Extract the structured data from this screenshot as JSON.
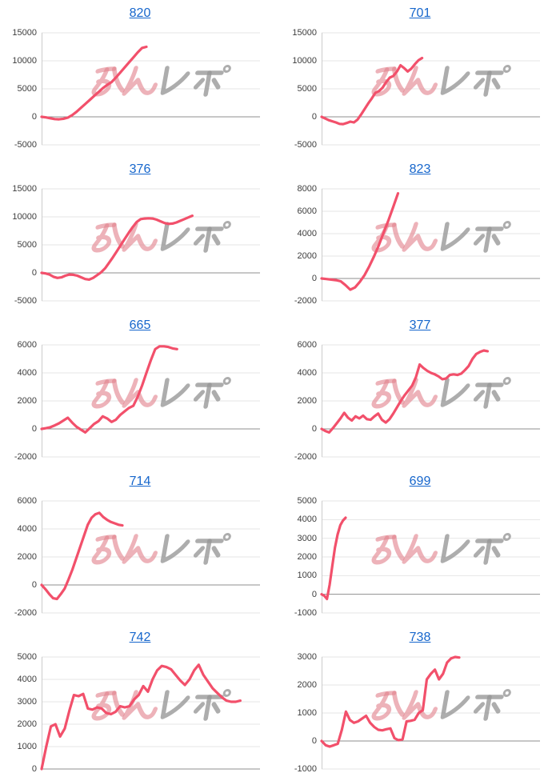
{
  "page": {
    "background": "#ffffff"
  },
  "style": {
    "accent_link": "#1666cc",
    "line_color": "#f2506b",
    "grid_color": "#e6e6e6",
    "zero_line_color": "#8f8f8f",
    "axis_color": "#cccccc",
    "label_color": "#3d3d3d"
  },
  "watermark": {
    "text": "みんレポ",
    "pink_color": "rgba(226,130,142,0.62)",
    "gray_color": "rgba(150,150,150,0.78)"
  },
  "chart_data": [
    {
      "type": "line",
      "title": "820",
      "legend": "none",
      "grid": "on",
      "yticks": [
        15000,
        10000,
        5000,
        0,
        -5000
      ],
      "ylim": [
        -5000,
        15000
      ],
      "x_extent": 0.48,
      "values": [
        0,
        -100,
        -250,
        -400,
        -450,
        -350,
        -150,
        300,
        900,
        1600,
        2300,
        3000,
        3700,
        4400,
        5100,
        5700,
        6200,
        7000,
        7900,
        8800,
        9700,
        10600,
        11500,
        12300,
        12500
      ]
    },
    {
      "type": "line",
      "title": "701",
      "legend": "none",
      "grid": "on",
      "yticks": [
        15000,
        10000,
        5000,
        0,
        -5000
      ],
      "ylim": [
        -5000,
        15000
      ],
      "x_extent": 0.46,
      "values": [
        0,
        -300,
        -600,
        -800,
        -1000,
        -1250,
        -1300,
        -1100,
        -850,
        -1000,
        -500,
        400,
        1400,
        2400,
        3300,
        4300,
        4600,
        5200,
        6200,
        7000,
        7300,
        8100,
        9200,
        8700,
        8100,
        8600,
        9400,
        10100,
        10500
      ]
    },
    {
      "type": "line",
      "title": "376",
      "legend": "none",
      "grid": "on",
      "yticks": [
        15000,
        10000,
        5000,
        0,
        -5000
      ],
      "ylim": [
        -5000,
        15000
      ],
      "x_extent": 0.69,
      "values": [
        0,
        -100,
        -300,
        -700,
        -900,
        -800,
        -500,
        -300,
        -350,
        -500,
        -800,
        -1100,
        -1200,
        -900,
        -400,
        100,
        800,
        1800,
        2800,
        3900,
        5000,
        6100,
        7200,
        8200,
        9100,
        9600,
        9700,
        9750,
        9700,
        9500,
        9200,
        8900,
        8750,
        8800,
        9000,
        9300,
        9600,
        9900,
        10200
      ]
    },
    {
      "type": "line",
      "title": "823",
      "legend": "none",
      "grid": "on",
      "yticks": [
        8000,
        6000,
        4000,
        2000,
        0,
        -2000
      ],
      "ylim": [
        -2000,
        8000
      ],
      "x_extent": 0.35,
      "values": [
        0,
        -50,
        -100,
        -150,
        -250,
        -600,
        -1000,
        -800,
        -300,
        300,
        1100,
        2000,
        3000,
        4100,
        5200,
        6400,
        7600
      ]
    },
    {
      "type": "line",
      "title": "665",
      "legend": "none",
      "grid": "on",
      "yticks": [
        6000,
        4000,
        2000,
        0,
        -2000
      ],
      "ylim": [
        -2000,
        6000
      ],
      "x_extent": 0.62,
      "values": [
        0,
        50,
        120,
        250,
        400,
        600,
        800,
        450,
        150,
        -50,
        -250,
        50,
        350,
        550,
        900,
        750,
        500,
        650,
        1000,
        1250,
        1500,
        1650,
        2300,
        3100,
        4000,
        4900,
        5700,
        5900,
        5900,
        5850,
        5750,
        5700
      ]
    },
    {
      "type": "line",
      "title": "377",
      "legend": "none",
      "grid": "on",
      "yticks": [
        6000,
        4000,
        2000,
        0,
        -2000
      ],
      "ylim": [
        -2000,
        6000
      ],
      "x_extent": 0.76,
      "values": [
        0,
        -150,
        -250,
        50,
        400,
        750,
        1150,
        800,
        600,
        900,
        750,
        950,
        700,
        650,
        900,
        1100,
        650,
        450,
        700,
        1100,
        1550,
        2000,
        2400,
        2750,
        3100,
        3700,
        4600,
        4350,
        4150,
        4000,
        3900,
        3750,
        3550,
        3600,
        3850,
        3900,
        3850,
        3950,
        4200,
        4500,
        5000,
        5350,
        5500,
        5600,
        5550
      ]
    },
    {
      "type": "line",
      "title": "714",
      "legend": "none",
      "grid": "on",
      "yticks": [
        6000,
        4000,
        2000,
        0,
        -2000
      ],
      "ylim": [
        -2000,
        6000
      ],
      "x_extent": 0.37,
      "values": [
        0,
        -300,
        -650,
        -950,
        -1000,
        -650,
        -250,
        400,
        1100,
        1900,
        2700,
        3500,
        4300,
        4800,
        5050,
        5150,
        4850,
        4650,
        4500,
        4400,
        4300,
        4250
      ]
    },
    {
      "type": "line",
      "title": "699",
      "legend": "none",
      "grid": "on",
      "yticks": [
        5000,
        4000,
        3000,
        2000,
        1000,
        0,
        -1000
      ],
      "ylim": [
        -1000,
        5000
      ],
      "x_extent": 0.11,
      "values": [
        0,
        -80,
        -250,
        500,
        1500,
        2500,
        3200,
        3700,
        3950,
        4100
      ]
    },
    {
      "type": "line",
      "title": "742",
      "legend": "none",
      "grid": "on",
      "yticks": [
        5000,
        4000,
        3000,
        2000,
        1000,
        0
      ],
      "ylim": [
        0,
        5000
      ],
      "x_extent": 0.91,
      "values": [
        0,
        1000,
        1900,
        2000,
        1450,
        1800,
        2600,
        3300,
        3250,
        3350,
        2700,
        2650,
        2750,
        2700,
        2500,
        2450,
        2550,
        2800,
        2750,
        2800,
        3100,
        3300,
        3700,
        3450,
        4000,
        4400,
        4600,
        4550,
        4450,
        4200,
        3950,
        3750,
        4000,
        4400,
        4650,
        4200,
        3900,
        3600,
        3400,
        3200,
        3050,
        3000,
        3000,
        3050
      ]
    },
    {
      "type": "line",
      "title": "738",
      "legend": "none",
      "grid": "on",
      "yticks": [
        3000,
        2000,
        1000,
        0,
        -1000
      ],
      "ylim": [
        -1000,
        3000
      ],
      "x_extent": 0.63,
      "values": [
        0,
        -150,
        -200,
        -150,
        -100,
        400,
        1050,
        750,
        650,
        700,
        800,
        900,
        650,
        500,
        400,
        380,
        420,
        450,
        100,
        30,
        60,
        700,
        720,
        760,
        1000,
        1100,
        2200,
        2400,
        2550,
        2200,
        2400,
        2800,
        2950,
        3000,
        2980
      ]
    }
  ]
}
